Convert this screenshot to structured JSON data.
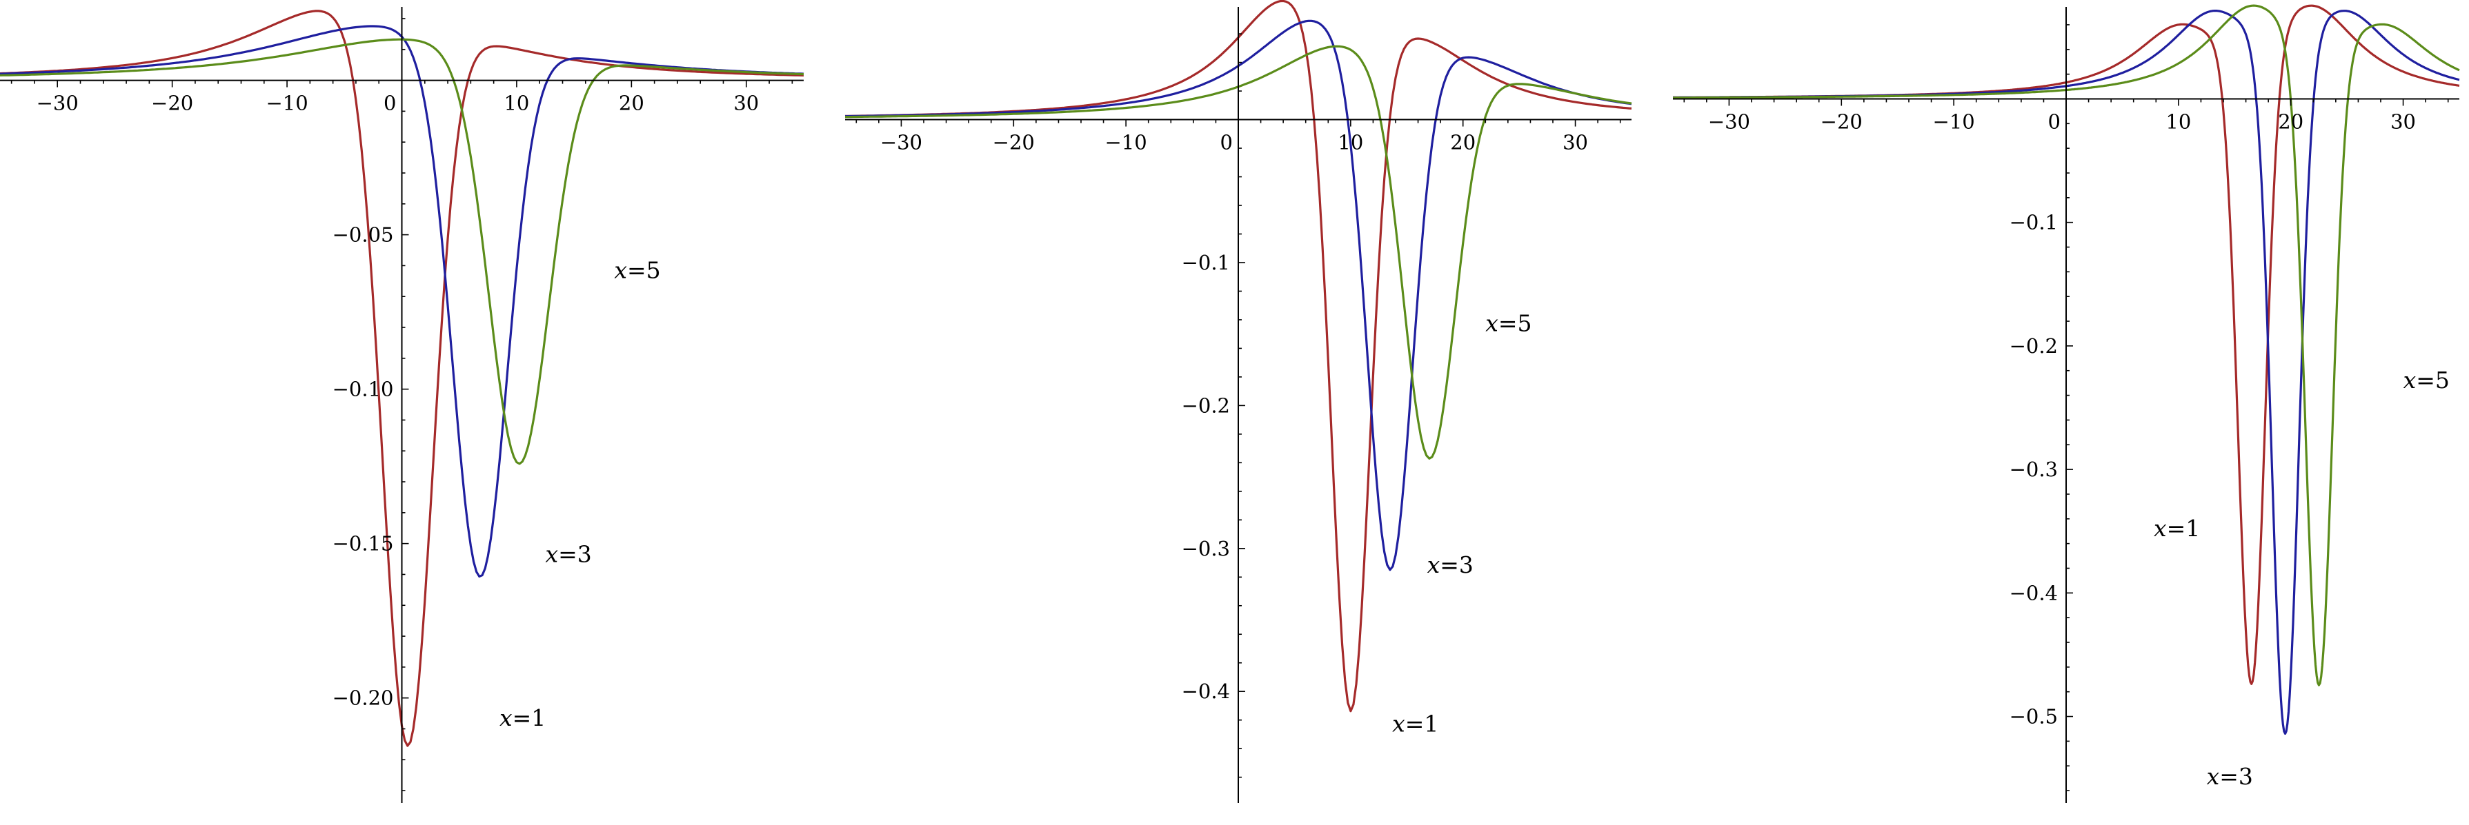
{
  "chart_data": [
    {
      "type": "line",
      "title": "",
      "xlabel": "",
      "ylabel": "",
      "xlim": [
        -35,
        35
      ],
      "ylim": [
        -0.234,
        0.022
      ],
      "grid": false,
      "legend": "none",
      "x_ticks": [
        -30,
        -20,
        -10,
        0,
        10,
        20,
        30
      ],
      "x_tick_labels": [
        "−30",
        "−20",
        "−10",
        "0",
        "10",
        "20",
        "30"
      ],
      "y_ticks": [
        -0.05,
        -0.1,
        -0.15,
        -0.2
      ],
      "y_tick_labels": [
        "−0.05",
        "−0.10",
        "−0.15",
        "−0.20"
      ],
      "x_step": 0.25,
      "series": [
        {
          "color": "#A52A2A",
          "center": 0.5,
          "min": -0.233,
          "min_width": 2.2,
          "max": 0.021,
          "shift": -7.0,
          "lor_width": 9.0,
          "max_right": 0.006,
          "shift_right": 6.0,
          "lor_width_right": 10.0
        },
        {
          "color": "#1F1F9F",
          "center": 6.8,
          "min": -0.173,
          "min_width": 2.4,
          "max": 0.017,
          "shift": -9.0,
          "lor_width": 12.0,
          "max_right": 0.002,
          "shift_right": 8.0,
          "lor_width_right": 12.0
        },
        {
          "color": "#5B8C1A",
          "center": 10.2,
          "min": -0.133,
          "min_width": 2.6,
          "max": 0.013,
          "shift": -10.0,
          "lor_width": 13.0,
          "max_right": 0.001,
          "shift_right": 9.0,
          "lor_width_right": 13.0
        }
      ],
      "annotations": [
        {
          "var": "x",
          "rest": "=5",
          "x": 18.5,
          "y": -0.064
        },
        {
          "var": "x",
          "rest": "=3",
          "x": 12.5,
          "y": -0.156
        },
        {
          "var": "x",
          "rest": "=1",
          "x": 8.5,
          "y": -0.209
        }
      ]
    },
    {
      "type": "line",
      "title": "",
      "xlabel": "",
      "ylabel": "",
      "xlim": [
        -35,
        35
      ],
      "ylim": [
        -0.478,
        0.075
      ],
      "grid": false,
      "legend": "none",
      "x_ticks": [
        -30,
        -20,
        -10,
        0,
        10,
        20,
        30
      ],
      "x_tick_labels": [
        "−30",
        "−20",
        "−10",
        "0",
        "10",
        "20",
        "30"
      ],
      "y_ticks": [
        -0.1,
        -0.2,
        -0.3,
        -0.4
      ],
      "y_tick_labels": [
        "−0.1",
        "−0.2",
        "−0.3",
        "−0.4"
      ],
      "x_step": 0.25,
      "series": [
        {
          "color": "#A52A2A",
          "center": 10.0,
          "min": -0.475,
          "min_width": 1.7,
          "max": 0.073,
          "shift": -6.0,
          "lor_width": 6.0,
          "max_right": 0.043,
          "shift_right": 6.0,
          "lor_width_right": 7.0
        },
        {
          "color": "#1F1F9F",
          "center": 13.5,
          "min": -0.364,
          "min_width": 2.0,
          "max": 0.062,
          "shift": -7.0,
          "lor_width": 7.0,
          "max_right": 0.032,
          "shift_right": 7.0,
          "lor_width_right": 8.0
        },
        {
          "color": "#5B8C1A",
          "center": 17.0,
          "min": -0.27,
          "min_width": 2.3,
          "max": 0.048,
          "shift": -8.0,
          "lor_width": 8.0,
          "max_right": 0.016,
          "shift_right": 8.0,
          "lor_width_right": 9.0
        }
      ],
      "annotations": [
        {
          "var": "x",
          "rest": "=5",
          "x": 22.0,
          "y": -0.148
        },
        {
          "var": "x",
          "rest": "=3",
          "x": 16.8,
          "y": -0.317
        },
        {
          "var": "x",
          "rest": "=1",
          "x": 13.7,
          "y": -0.428
        }
      ]
    },
    {
      "type": "line",
      "title": "",
      "xlabel": "",
      "ylabel": "",
      "xlim": [
        -35,
        35
      ],
      "ylim": [
        -0.57,
        0.07
      ],
      "grid": false,
      "legend": "none",
      "x_ticks": [
        -30,
        -20,
        -10,
        0,
        10,
        20,
        30
      ],
      "x_tick_labels": [
        "−30",
        "−20",
        "−10",
        "0",
        "10",
        "20",
        "30"
      ],
      "y_ticks": [
        -0.1,
        -0.2,
        -0.3,
        -0.4,
        -0.5
      ],
      "y_tick_labels": [
        "−0.1",
        "−0.2",
        "−0.3",
        "−0.4",
        "−0.5"
      ],
      "x_step": 0.1,
      "series": [
        {
          "color": "#A52A2A",
          "center": 16.5,
          "min": -0.523,
          "min_width": 1.2,
          "max": 0.05,
          "shift": -6.5,
          "lor_width": 5.0,
          "max_right": 0.068,
          "shift_right": 5.5,
          "lor_width_right": 5.0
        },
        {
          "color": "#1F1F9F",
          "center": 19.5,
          "min": -0.565,
          "min_width": 1.2,
          "max": 0.062,
          "shift": -6.5,
          "lor_width": 5.0,
          "max_right": 0.062,
          "shift_right": 5.5,
          "lor_width_right": 5.0
        },
        {
          "color": "#5B8C1A",
          "center": 22.5,
          "min": -0.523,
          "min_width": 1.2,
          "max": 0.068,
          "shift": -6.0,
          "lor_width": 5.0,
          "max_right": 0.05,
          "shift_right": 6.0,
          "lor_width_right": 5.0
        }
      ],
      "annotations": [
        {
          "var": "x",
          "rest": "=5",
          "x": 30.0,
          "y": -0.234
        },
        {
          "var": "x",
          "rest": "=1",
          "x": 7.8,
          "y": -0.354
        },
        {
          "var": "x",
          "rest": "=3",
          "x": 12.5,
          "y": -0.555
        }
      ]
    }
  ]
}
